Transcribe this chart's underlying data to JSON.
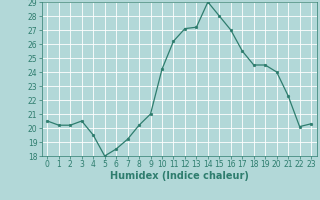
{
  "x": [
    0,
    1,
    2,
    3,
    4,
    5,
    6,
    7,
    8,
    9,
    10,
    11,
    12,
    13,
    14,
    15,
    16,
    17,
    18,
    19,
    20,
    21,
    22,
    23
  ],
  "y": [
    20.5,
    20.2,
    20.2,
    20.5,
    19.5,
    18.0,
    18.5,
    19.2,
    20.2,
    21.0,
    24.2,
    26.2,
    27.1,
    27.2,
    29.0,
    28.0,
    27.0,
    25.5,
    24.5,
    24.5,
    24.0,
    22.3,
    20.1,
    20.3
  ],
  "line_color": "#2e7d6e",
  "marker": "o",
  "marker_size": 1.8,
  "background_color": "#b2d8d8",
  "grid_color": "#ffffff",
  "xlabel": "Humidex (Indice chaleur)",
  "xlabel_fontsize": 7,
  "tick_fontsize": 5.5,
  "ylim": [
    18,
    29
  ],
  "yticks": [
    18,
    19,
    20,
    21,
    22,
    23,
    24,
    25,
    26,
    27,
    28,
    29
  ],
  "xticks": [
    0,
    1,
    2,
    3,
    4,
    5,
    6,
    7,
    8,
    9,
    10,
    11,
    12,
    13,
    14,
    15,
    16,
    17,
    18,
    19,
    20,
    21,
    22,
    23
  ]
}
